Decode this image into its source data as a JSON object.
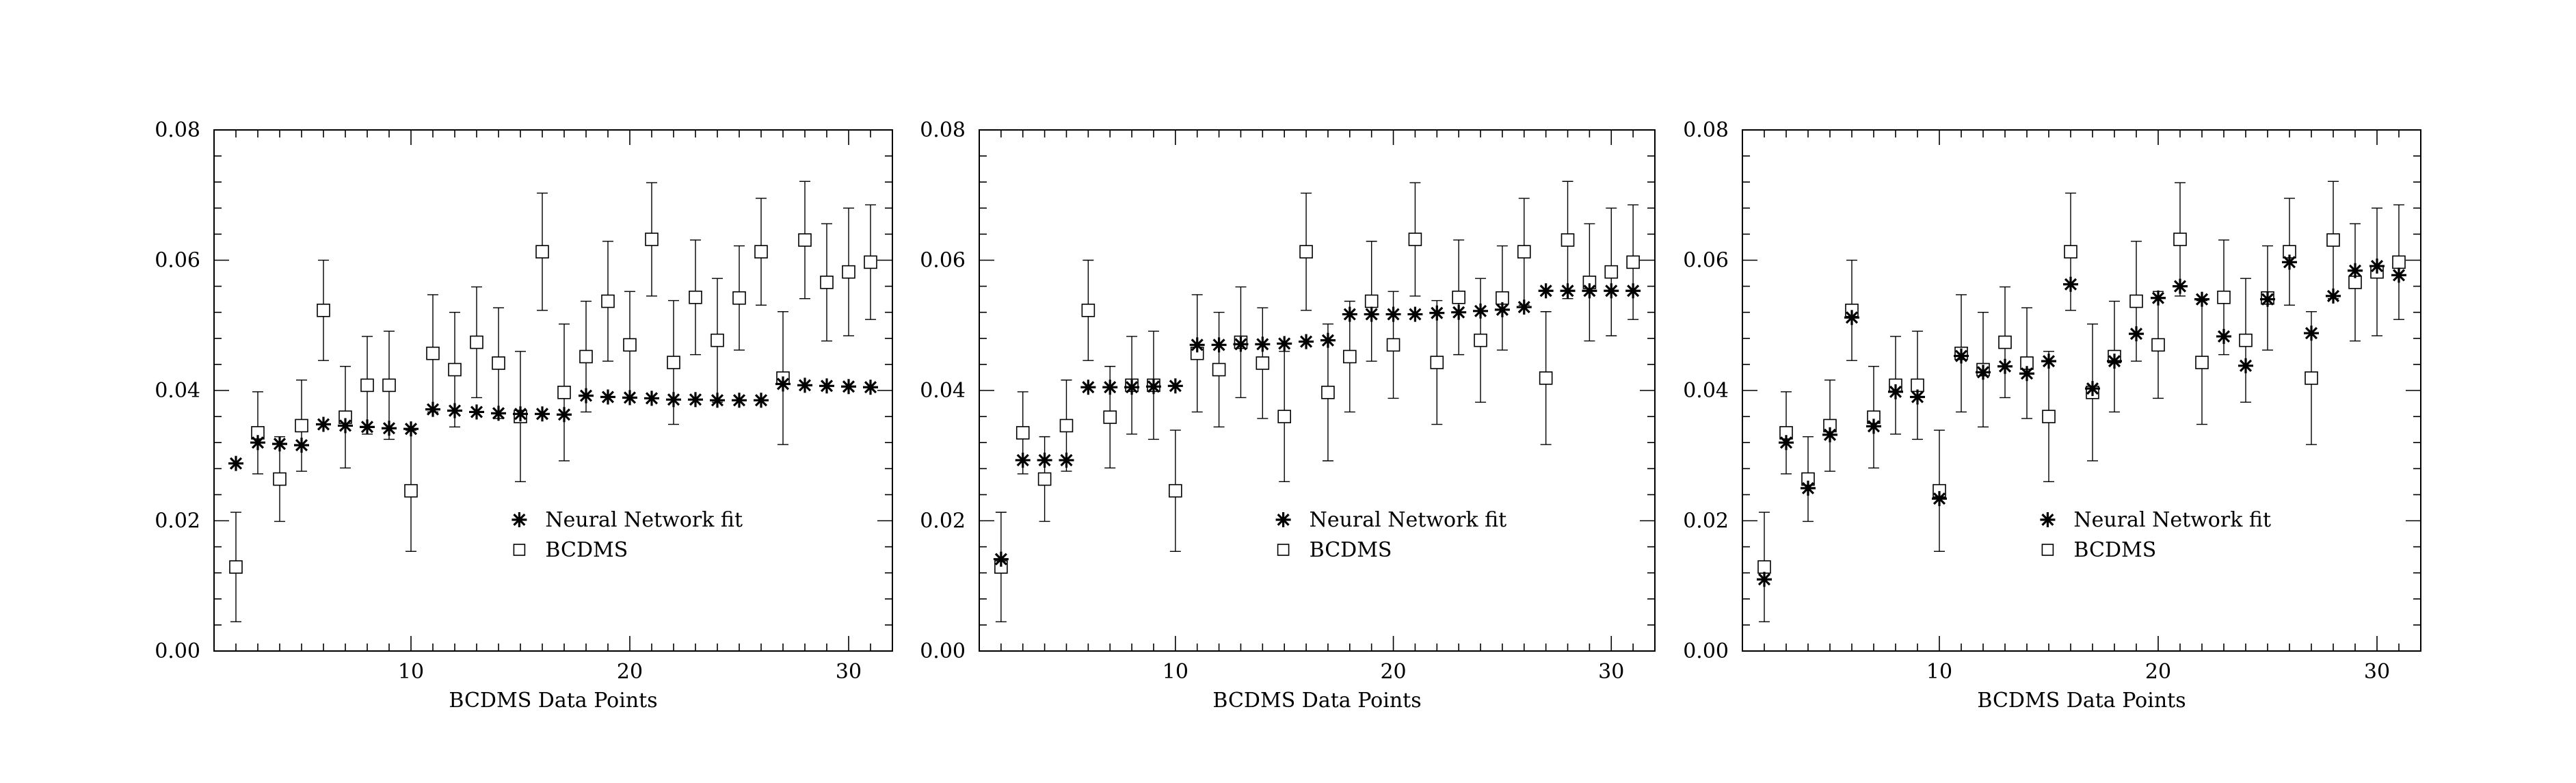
{
  "figure": {
    "legend": {
      "nn_label": "Neural Network fit",
      "bcdms_label": "BCDMS"
    }
  },
  "chart_data": [
    {
      "type": "scatter",
      "xlabel": "BCDMS Data Points",
      "ylabel": "",
      "xlim": [
        1,
        32
      ],
      "ylim": [
        0,
        0.08
      ],
      "xticks": [
        10,
        20,
        30
      ],
      "yticks": [
        "0.00",
        "0.02",
        "0.04",
        "0.06",
        "0.08"
      ],
      "legend_position": "center-bottom",
      "series": [
        {
          "name": "Neural Network fit",
          "marker": "asterisk",
          "x": [
            2,
            3,
            4,
            5,
            6,
            7,
            8,
            9,
            10,
            11,
            12,
            13,
            14,
            15,
            16,
            17,
            18,
            19,
            20,
            21,
            22,
            23,
            24,
            25,
            26,
            27,
            28,
            29,
            30,
            31
          ],
          "y": [
            0.0288,
            0.032,
            0.0318,
            0.0316,
            0.0348,
            0.0346,
            0.0344,
            0.0342,
            0.0341,
            0.0371,
            0.0369,
            0.0367,
            0.0365,
            0.0364,
            0.0364,
            0.0363,
            0.0392,
            0.039,
            0.0389,
            0.0388,
            0.0386,
            0.0386,
            0.0385,
            0.0385,
            0.0385,
            0.041,
            0.0408,
            0.0407,
            0.0406,
            0.0405
          ]
        },
        {
          "name": "BCDMS",
          "marker": "open-square",
          "x": [
            2,
            3,
            4,
            5,
            6,
            7,
            8,
            9,
            10,
            11,
            12,
            13,
            14,
            15,
            16,
            17,
            18,
            19,
            20,
            21,
            22,
            23,
            24,
            25,
            26,
            27,
            28,
            29,
            30,
            31
          ],
          "y": [
            0.0129,
            0.0335,
            0.0264,
            0.0346,
            0.0523,
            0.0359,
            0.0408,
            0.0408,
            0.0246,
            0.0457,
            0.0432,
            0.0474,
            0.0442,
            0.036,
            0.0613,
            0.0397,
            0.0452,
            0.0537,
            0.047,
            0.0632,
            0.0443,
            0.0543,
            0.0477,
            0.0542,
            0.0613,
            0.0419,
            0.0631,
            0.0566,
            0.0582,
            0.0597
          ],
          "yerr": [
            0.0084,
            0.0063,
            0.0065,
            0.007,
            0.0077,
            0.0078,
            0.0075,
            0.0083,
            0.0093,
            0.009,
            0.0088,
            0.0085,
            0.0085,
            0.01,
            0.009,
            0.0105,
            0.0085,
            0.0092,
            0.0082,
            0.0087,
            0.0095,
            0.0088,
            0.0095,
            0.008,
            0.0082,
            0.0102,
            0.009,
            0.009,
            0.0098,
            0.0088
          ]
        }
      ]
    },
    {
      "type": "scatter",
      "xlabel": "BCDMS Data Points",
      "ylabel": "",
      "xlim": [
        1,
        32
      ],
      "ylim": [
        0,
        0.08
      ],
      "xticks": [
        10,
        20,
        30
      ],
      "yticks": [
        "0.00",
        "0.02",
        "0.04",
        "0.06",
        "0.08"
      ],
      "legend_position": "center-bottom",
      "series": [
        {
          "name": "Neural Network fit",
          "marker": "asterisk",
          "x": [
            2,
            3,
            4,
            5,
            6,
            7,
            8,
            9,
            10,
            11,
            12,
            13,
            14,
            15,
            16,
            17,
            18,
            19,
            20,
            21,
            22,
            23,
            24,
            25,
            26,
            27,
            28,
            29,
            30,
            31
          ],
          "y": [
            0.0141,
            0.0293,
            0.0293,
            0.0293,
            0.0405,
            0.0405,
            0.0405,
            0.0406,
            0.0407,
            0.047,
            0.047,
            0.0471,
            0.0471,
            0.0472,
            0.0475,
            0.0477,
            0.0517,
            0.0517,
            0.0517,
            0.0517,
            0.0519,
            0.052,
            0.0522,
            0.0524,
            0.0528,
            0.0553,
            0.0553,
            0.0553,
            0.0553,
            0.0553
          ]
        },
        {
          "name": "BCDMS",
          "marker": "open-square",
          "x": [
            2,
            3,
            4,
            5,
            6,
            7,
            8,
            9,
            10,
            11,
            12,
            13,
            14,
            15,
            16,
            17,
            18,
            19,
            20,
            21,
            22,
            23,
            24,
            25,
            26,
            27,
            28,
            29,
            30,
            31
          ],
          "y": [
            0.0129,
            0.0335,
            0.0264,
            0.0346,
            0.0523,
            0.0359,
            0.0408,
            0.0408,
            0.0246,
            0.0457,
            0.0432,
            0.0474,
            0.0442,
            0.036,
            0.0613,
            0.0397,
            0.0452,
            0.0537,
            0.047,
            0.0632,
            0.0443,
            0.0543,
            0.0477,
            0.0542,
            0.0613,
            0.0419,
            0.0631,
            0.0566,
            0.0582,
            0.0597
          ],
          "yerr": [
            0.0084,
            0.0063,
            0.0065,
            0.007,
            0.0077,
            0.0078,
            0.0075,
            0.0083,
            0.0093,
            0.009,
            0.0088,
            0.0085,
            0.0085,
            0.01,
            0.009,
            0.0105,
            0.0085,
            0.0092,
            0.0082,
            0.0087,
            0.0095,
            0.0088,
            0.0095,
            0.008,
            0.0082,
            0.0102,
            0.009,
            0.009,
            0.0098,
            0.0088
          ]
        }
      ]
    },
    {
      "type": "scatter",
      "xlabel": "BCDMS Data Points",
      "ylabel": "",
      "xlim": [
        1,
        32
      ],
      "ylim": [
        0,
        0.08
      ],
      "xticks": [
        10,
        20,
        30
      ],
      "yticks": [
        "0.00",
        "0.02",
        "0.04",
        "0.06",
        "0.08"
      ],
      "legend_position": "center-bottom",
      "series": [
        {
          "name": "Neural Network fit",
          "marker": "asterisk",
          "x": [
            2,
            3,
            4,
            5,
            6,
            7,
            8,
            9,
            10,
            11,
            12,
            13,
            14,
            15,
            16,
            17,
            18,
            19,
            20,
            21,
            22,
            23,
            24,
            25,
            26,
            27,
            28,
            29,
            30,
            31
          ],
          "y": [
            0.011,
            0.032,
            0.025,
            0.0332,
            0.0512,
            0.0345,
            0.0398,
            0.039,
            0.0234,
            0.0453,
            0.0428,
            0.0437,
            0.0426,
            0.0445,
            0.0563,
            0.0403,
            0.0445,
            0.0487,
            0.0542,
            0.056,
            0.054,
            0.0483,
            0.0438,
            0.054,
            0.0597,
            0.0488,
            0.0545,
            0.0584,
            0.0591,
            0.0577
          ]
        },
        {
          "name": "BCDMS",
          "marker": "open-square",
          "x": [
            2,
            3,
            4,
            5,
            6,
            7,
            8,
            9,
            10,
            11,
            12,
            13,
            14,
            15,
            16,
            17,
            18,
            19,
            20,
            21,
            22,
            23,
            24,
            25,
            26,
            27,
            28,
            29,
            30,
            31
          ],
          "y": [
            0.0129,
            0.0335,
            0.0264,
            0.0346,
            0.0523,
            0.0359,
            0.0408,
            0.0408,
            0.0246,
            0.0457,
            0.0432,
            0.0474,
            0.0442,
            0.036,
            0.0613,
            0.0397,
            0.0452,
            0.0537,
            0.047,
            0.0632,
            0.0443,
            0.0543,
            0.0477,
            0.0542,
            0.0613,
            0.0419,
            0.0631,
            0.0566,
            0.0582,
            0.0597
          ],
          "yerr": [
            0.0084,
            0.0063,
            0.0065,
            0.007,
            0.0077,
            0.0078,
            0.0075,
            0.0083,
            0.0093,
            0.009,
            0.0088,
            0.0085,
            0.0085,
            0.01,
            0.009,
            0.0105,
            0.0085,
            0.0092,
            0.0082,
            0.0087,
            0.0095,
            0.0088,
            0.0095,
            0.008,
            0.0082,
            0.0102,
            0.009,
            0.009,
            0.0098,
            0.0088
          ]
        }
      ]
    }
  ]
}
